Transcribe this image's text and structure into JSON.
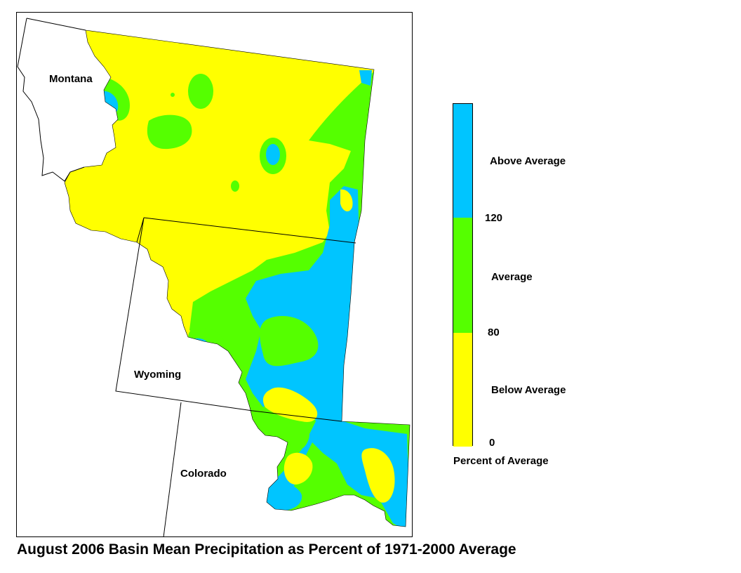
{
  "title": "August 2006 Basin Mean Precipitation as Percent of 1971-2000 Average",
  "states": {
    "montana": "Montana",
    "wyoming": "Wyoming",
    "colorado": "Colorado"
  },
  "legend": {
    "caption": "Percent of Average",
    "classes": [
      {
        "label": "Above Average",
        "color": "#00c5ff",
        "min": 120
      },
      {
        "label": "Average",
        "color": "#55ff00",
        "min": 80,
        "max": 120
      },
      {
        "label": "Below Average",
        "color": "#ffff00",
        "min": 0,
        "max": 80
      }
    ],
    "breaks": [
      "120",
      "80",
      "0"
    ]
  },
  "colors": {
    "above": "#00c5ff",
    "average": "#55ff00",
    "below": "#ffff00",
    "outline": "#000000"
  }
}
